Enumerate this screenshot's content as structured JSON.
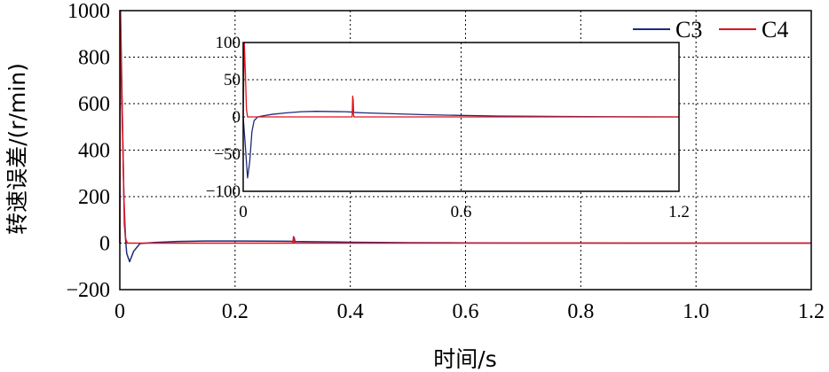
{
  "chart_data": [
    {
      "type": "line",
      "name": "main",
      "xlabel": "时间/s",
      "ylabel": "转速误差/(r/min)",
      "xlim": [
        0,
        1.2
      ],
      "ylim": [
        -200,
        1000
      ],
      "x_ticks": [
        0,
        0.2,
        0.4,
        0.6,
        0.8,
        1.0,
        1.2
      ],
      "x_tick_labels": [
        "0",
        "0.2",
        "0.4",
        "0.6",
        "0.8",
        "1.0",
        "1.2"
      ],
      "y_ticks": [
        -200,
        0,
        200,
        400,
        600,
        800,
        1000
      ],
      "y_tick_labels": [
        "−200",
        "0",
        "200",
        "400",
        "600",
        "800",
        "1000"
      ],
      "grid": true,
      "legend_position": "top-right",
      "series": [
        {
          "name": "C3",
          "color": "#1f2a7a",
          "x": [
            0,
            0.0012,
            0.004,
            0.008,
            0.012,
            0.017,
            0.024,
            0.035,
            0.06,
            0.1,
            0.15,
            0.2,
            0.25,
            0.29,
            0.302,
            0.3025,
            0.304,
            0.33,
            0.4,
            0.5,
            0.6,
            0.7,
            0.8,
            0.9,
            1.0,
            1.1,
            1.2
          ],
          "y": [
            0,
            1000,
            600,
            80,
            -45,
            -80,
            -35,
            -2,
            3,
            7,
            9,
            9,
            8.5,
            8,
            7.5,
            25,
            7,
            6,
            4,
            2,
            1,
            0.5,
            0.3,
            0.2,
            0.1,
            0,
            0
          ]
        },
        {
          "name": "C4",
          "color": "#e0141e",
          "x": [
            0,
            0.0008,
            0.003,
            0.007,
            0.01,
            0.013,
            0.02,
            0.3,
            0.3015,
            0.303,
            0.305,
            1.2
          ],
          "y": [
            0,
            1000,
            700,
            200,
            20,
            0,
            0,
            0,
            28,
            6,
            0,
            0
          ]
        }
      ]
    },
    {
      "type": "line",
      "name": "inset",
      "xlim": [
        0,
        1.2
      ],
      "ylim": [
        -100,
        100
      ],
      "x_ticks": [
        0,
        0.6,
        1.2
      ],
      "x_tick_labels": [
        "0",
        "0.6",
        "1.2"
      ],
      "y_ticks": [
        -100,
        -50,
        0,
        50,
        100
      ],
      "y_tick_labels": [
        "−100",
        "−50",
        "0",
        "50",
        "100"
      ],
      "grid": true,
      "series": [
        {
          "name": "C3",
          "color": "#1f2a7a",
          "x": [
            0,
            0.006,
            0.012,
            0.018,
            0.024,
            0.03,
            0.04,
            0.05,
            0.08,
            0.12,
            0.16,
            0.2,
            0.24,
            0.28,
            0.302,
            0.3025,
            0.304,
            0.33,
            0.4,
            0.5,
            0.6,
            0.7,
            0.8,
            0.9,
            1.0,
            1.1,
            1.2
          ],
          "y": [
            0,
            -40,
            -82,
            -60,
            -20,
            -5,
            0,
            1,
            3.5,
            5.5,
            7,
            7.5,
            7.2,
            7,
            6.5,
            25,
            6,
            5.5,
            4.5,
            3,
            2,
            1.2,
            0.8,
            0.5,
            0.3,
            0.1,
            0
          ]
        },
        {
          "name": "C4",
          "color": "#e0141e",
          "x": [
            0,
            0.003,
            0.006,
            0.009,
            0.012,
            0.02,
            0.3,
            0.3015,
            0.303,
            0.305,
            1.2
          ],
          "y": [
            0,
            100,
            60,
            10,
            0,
            0,
            0,
            28,
            5,
            0,
            0
          ]
        }
      ]
    }
  ]
}
